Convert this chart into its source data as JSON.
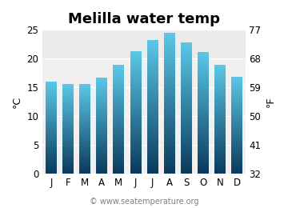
{
  "title": "Melilla water temp",
  "months": [
    "J",
    "F",
    "M",
    "A",
    "M",
    "J",
    "J",
    "A",
    "S",
    "O",
    "N",
    "D"
  ],
  "temps_c": [
    15.9,
    15.5,
    15.6,
    16.7,
    18.9,
    21.2,
    23.2,
    24.4,
    22.8,
    21.1,
    18.9,
    16.8
  ],
  "ylim_c": [
    0,
    25
  ],
  "yticks_c": [
    0,
    5,
    10,
    15,
    20,
    25
  ],
  "yticks_f": [
    32,
    41,
    50,
    59,
    68,
    77
  ],
  "ylabel_left": "°C",
  "ylabel_right": "°F",
  "bar_color_top": "#5bc8e8",
  "bar_color_bottom": "#0a3a5c",
  "background_color": "#ffffff",
  "plot_bg_color": "#f0f0f0",
  "grid_color": "#ffffff",
  "watermark": "© www.seatemperature.org",
  "title_fontsize": 13,
  "label_fontsize": 9,
  "tick_fontsize": 8.5,
  "watermark_fontsize": 7
}
